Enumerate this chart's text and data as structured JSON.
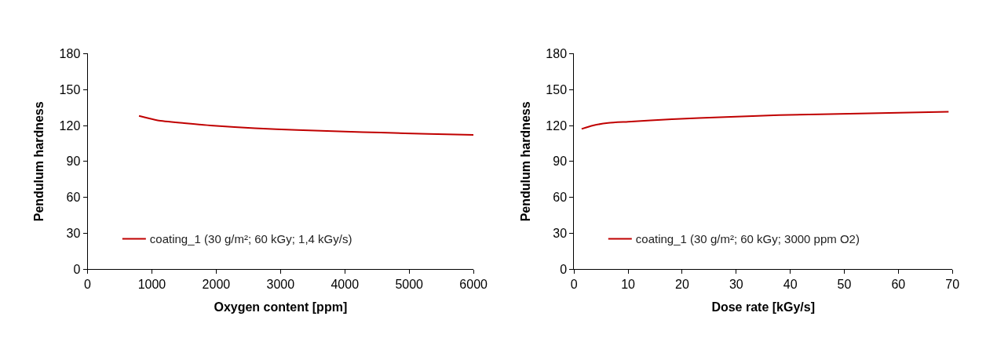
{
  "chart_data": [
    {
      "type": "line",
      "xlabel": "Oxygen content [ppm]",
      "ylabel": "Pendulum hardness",
      "x": [
        800,
        1090,
        1500,
        1960,
        2600,
        3260,
        4000,
        4560,
        5300,
        6000
      ],
      "series": [
        {
          "name": "coating_1 (30 g/m²; 60 kGy; 1,4 kGy/s)",
          "color": "#c00000",
          "values": [
            128,
            124.3,
            122,
            119.8,
            117.8,
            116.2,
            115,
            114.1,
            113,
            112.1
          ]
        }
      ],
      "xlim": [
        0,
        6000
      ],
      "xticks": [
        0,
        1000,
        2000,
        3000,
        4000,
        5000,
        6000
      ],
      "ylim": [
        0,
        180
      ],
      "yticks": [
        0,
        30,
        60,
        90,
        120,
        150,
        180
      ],
      "grid": false,
      "legend": "bottom left",
      "marker": "none",
      "line_style": "solid"
    },
    {
      "type": "line",
      "xlabel": "Dose rate [kGy/s]",
      "ylabel": "Pendulum hardness",
      "x": [
        1.4,
        3.5,
        6.3,
        10,
        18.1,
        28,
        37.9,
        52.8,
        69.3
      ],
      "series": [
        {
          "name": "coating_1 (30 g/m²; 60 kGy; 3000 ppm O2)",
          "color": "#c00000",
          "values": [
            117.2,
            120,
            122.2,
            123.2,
            125.2,
            127.1,
            128.7,
            130,
            131.5
          ]
        }
      ],
      "xlim": [
        0,
        70
      ],
      "xticks": [
        0,
        10,
        20,
        30,
        40,
        50,
        60,
        70
      ],
      "ylim": [
        0,
        180
      ],
      "yticks": [
        0,
        30,
        60,
        90,
        120,
        150,
        180
      ],
      "grid": false,
      "legend": "bottom left",
      "marker": "none",
      "line_style": "solid"
    }
  ]
}
